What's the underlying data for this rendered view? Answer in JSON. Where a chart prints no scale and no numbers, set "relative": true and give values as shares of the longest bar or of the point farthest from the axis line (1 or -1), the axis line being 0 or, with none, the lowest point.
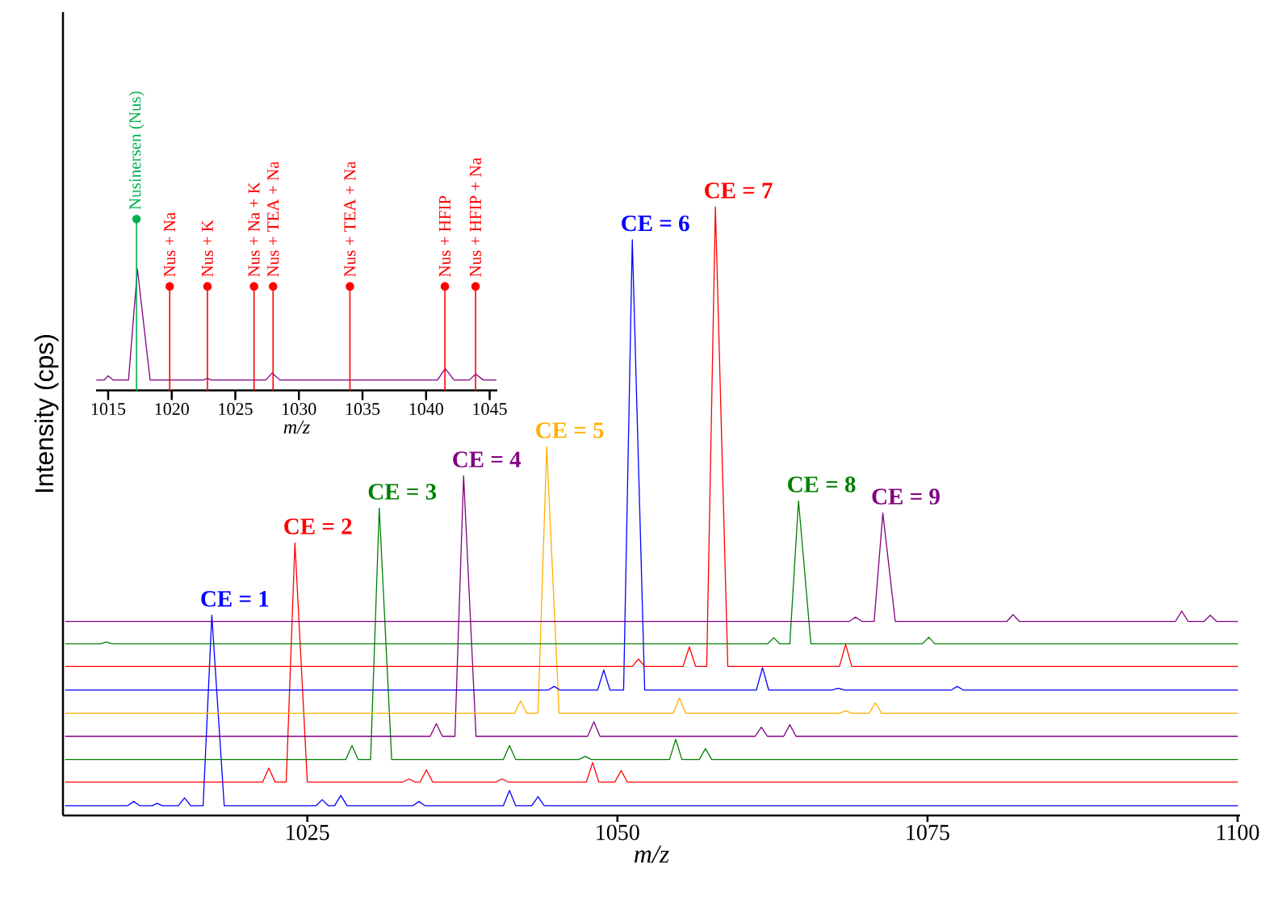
{
  "chart_data": [
    {
      "type": "line",
      "xlabel": "m/z",
      "ylabel": "Intensity (cps)",
      "relative": true,
      "xlim": [
        1005.3,
        1100.2
      ],
      "xticks": [
        1025,
        1050,
        1075,
        1100
      ],
      "series": [
        {
          "color": "#0000ff",
          "x": [
            1005.5,
            1010.5,
            1011.0,
            1011.5,
            1012.5,
            1012.9,
            1013.3,
            1014.6,
            1015.1,
            1015.6,
            1016.6,
            1017.3,
            1018.3,
            1025.7,
            1026.2,
            1026.7,
            1027.2,
            1027.7,
            1028.2,
            1033.5,
            1034.0,
            1034.5,
            1040.8,
            1041.3,
            1041.8,
            1043.1,
            1043.6,
            1044.1,
            1100
          ],
          "values": [
            0.016,
            0.016,
            0.023,
            0.016,
            0.016,
            0.02,
            0.016,
            0.016,
            0.029,
            0.016,
            0.016,
            0.329,
            0.016,
            0.016,
            0.026,
            0.016,
            0.016,
            0.033,
            0.016,
            0.016,
            0.023,
            0.016,
            0.016,
            0.041,
            0.016,
            0.016,
            0.031,
            0.016,
            0.016
          ]
        },
        {
          "color": "#ff0000",
          "x": [
            1005.5,
            1021.4,
            1021.9,
            1022.4,
            1023.3,
            1024.0,
            1025.0,
            1032.7,
            1033.2,
            1033.7,
            1034.1,
            1034.6,
            1035.1,
            1040.2,
            1040.7,
            1041.2,
            1047.5,
            1048.0,
            1048.5,
            1049.8,
            1050.3,
            1050.8,
            1100
          ],
          "values": [
            0.055,
            0.055,
            0.078,
            0.055,
            0.055,
            0.448,
            0.055,
            0.055,
            0.06,
            0.055,
            0.055,
            0.075,
            0.055,
            0.055,
            0.06,
            0.055,
            0.055,
            0.087,
            0.055,
            0.055,
            0.074,
            0.055,
            0.055
          ]
        },
        {
          "color": "#008000",
          "x": [
            1005.5,
            1028.1,
            1028.6,
            1029.1,
            1030.1,
            1030.8,
            1031.8,
            1040.8,
            1041.3,
            1041.8,
            1046.9,
            1047.4,
            1047.9,
            1054.2,
            1054.7,
            1055.2,
            1056.6,
            1057.1,
            1057.6,
            1100
          ],
          "values": [
            0.092,
            0.092,
            0.115,
            0.092,
            0.092,
            0.505,
            0.092,
            0.092,
            0.115,
            0.092,
            0.092,
            0.097,
            0.092,
            0.092,
            0.125,
            0.092,
            0.092,
            0.11,
            0.092,
            0.092
          ]
        },
        {
          "color": "#800080",
          "x": [
            1005.5,
            1034.9,
            1035.4,
            1035.9,
            1036.9,
            1037.6,
            1038.6,
            1047.6,
            1048.1,
            1048.6,
            1061.1,
            1061.6,
            1062.1,
            1063.4,
            1063.9,
            1064.4,
            1100
          ],
          "values": [
            0.13,
            0.13,
            0.151,
            0.13,
            0.13,
            0.558,
            0.13,
            0.13,
            0.154,
            0.13,
            0.13,
            0.145,
            0.13,
            0.13,
            0.149,
            0.13,
            0.13
          ]
        },
        {
          "color": "#ffb000",
          "x": [
            1005.5,
            1041.7,
            1042.2,
            1042.7,
            1043.6,
            1044.3,
            1045.3,
            1054.5,
            1055.0,
            1055.5,
            1067.9,
            1068.4,
            1068.9,
            1070.3,
            1070.8,
            1071.3,
            1100
          ],
          "values": [
            0.168,
            0.168,
            0.188,
            0.168,
            0.168,
            0.606,
            0.168,
            0.168,
            0.193,
            0.168,
            0.168,
            0.172,
            0.168,
            0.168,
            0.185,
            0.168,
            0.168
          ]
        },
        {
          "color": "#0000ff",
          "x": [
            1005.5,
            1044.4,
            1044.9,
            1045.4,
            1048.4,
            1048.9,
            1049.4,
            1050.5,
            1051.2,
            1052.2,
            1061.2,
            1061.7,
            1062.2,
            1067.3,
            1067.8,
            1068.3,
            1076.9,
            1077.4,
            1077.9,
            1100
          ],
          "values": [
            0.206,
            0.206,
            0.212,
            0.206,
            0.206,
            0.239,
            0.206,
            0.206,
            0.946,
            0.206,
            0.206,
            0.243,
            0.206,
            0.206,
            0.209,
            0.206,
            0.206,
            0.212,
            0.206,
            0.206
          ]
        },
        {
          "color": "#ff0000",
          "x": [
            1005.5,
            1051.2,
            1051.7,
            1052.2,
            1055.3,
            1055.8,
            1056.3,
            1057.2,
            1057.9,
            1058.9,
            1067.9,
            1068.4,
            1068.9,
            1100
          ],
          "values": [
            0.245,
            0.245,
            0.257,
            0.245,
            0.245,
            0.277,
            0.245,
            0.245,
            1.0,
            0.245,
            0.245,
            0.281,
            0.245,
            0.245
          ]
        },
        {
          "color": "#008000",
          "x": [
            1005.5,
            1008.3,
            1008.8,
            1009.3,
            1062.1,
            1062.6,
            1063.1,
            1063.9,
            1064.6,
            1065.6,
            1074.6,
            1075.1,
            1075.6,
            1100
          ],
          "values": [
            0.282,
            0.282,
            0.285,
            0.282,
            0.282,
            0.292,
            0.282,
            0.282,
            0.517,
            0.282,
            0.282,
            0.293,
            0.282,
            0.282
          ]
        },
        {
          "color": "#800080",
          "x": [
            1005.5,
            1068.7,
            1069.2,
            1069.7,
            1070.7,
            1071.4,
            1072.4,
            1081.4,
            1081.9,
            1082.4,
            1095.0,
            1095.5,
            1096.0,
            1097.3,
            1097.8,
            1098.3,
            1100
          ],
          "values": [
            0.319,
            0.319,
            0.326,
            0.319,
            0.319,
            0.497,
            0.319,
            0.319,
            0.33,
            0.319,
            0.319,
            0.336,
            0.319,
            0.319,
            0.329,
            0.319,
            0.319
          ]
        }
      ],
      "annotations": [
        {
          "text": "CE = 1",
          "x": 1017.3,
          "y": 0.329
        },
        {
          "text": "CE = 2",
          "x": 1024.0,
          "y": 0.448
        },
        {
          "text": "CE = 3",
          "x": 1030.8,
          "y": 0.505
        },
        {
          "text": "CE = 4",
          "x": 1037.6,
          "y": 0.558
        },
        {
          "text": "CE = 5",
          "x": 1044.3,
          "y": 0.606
        },
        {
          "text": "CE = 6",
          "x": 1051.2,
          "y": 0.946
        },
        {
          "text": "CE = 7",
          "x": 1057.9,
          "y": 1.0
        },
        {
          "text": "CE = 8",
          "x": 1064.6,
          "y": 0.517
        },
        {
          "text": "CE = 9",
          "x": 1071.4,
          "y": 0.497
        }
      ]
    },
    {
      "type": "line",
      "xlabel": "m/z",
      "relative": true,
      "xlim": [
        1014.05,
        1045.6
      ],
      "xticks": [
        1015,
        1020,
        1025,
        1030,
        1035,
        1040,
        1045
      ],
      "series": [
        {
          "type": "line",
          "color": "#800080",
          "x": [
            1014.1,
            1014.7,
            1015.0,
            1015.4,
            1016.6,
            1017.3,
            1018.3,
            1022.5,
            1022.8,
            1023.1,
            1027.4,
            1027.9,
            1028.5,
            1040.9,
            1041.5,
            1042.2,
            1043.4,
            1043.9,
            1044.5,
            1045.5
          ],
          "values": [
            0.061,
            0.061,
            0.085,
            0.061,
            0.061,
            0.708,
            0.061,
            0.061,
            0.07,
            0.061,
            0.061,
            0.102,
            0.061,
            0.061,
            0.128,
            0.061,
            0.061,
            0.096,
            0.061,
            0.061
          ]
        },
        {
          "type": "lollipop",
          "color": "#00b050",
          "x": [
            1017.23
          ],
          "values": [
            1.0
          ]
        },
        {
          "type": "lollipop",
          "color": "#ff0000",
          "x": [
            1019.84,
            1022.81,
            1026.47,
            1027.97,
            1034.01,
            1041.48,
            1043.89
          ],
          "values": [
            0.607,
            0.607,
            0.607,
            0.607,
            0.607,
            0.607,
            0.607
          ]
        }
      ],
      "annotations": [
        {
          "text": "Nusinersen (Nus)",
          "x": 1017.23,
          "y": 1.0
        },
        {
          "text": "Nus + Na",
          "x": 1019.84,
          "y": 0.607
        },
        {
          "text": "Nus + K",
          "x": 1022.81,
          "y": 0.607
        },
        {
          "text": "Nus + Na + K",
          "x": 1026.47,
          "y": 0.607
        },
        {
          "text": "Nus + TEA + Na",
          "x": 1027.97,
          "y": 0.607
        },
        {
          "text": "Nus + TEA + Na",
          "x": 1034.01,
          "y": 0.607
        },
        {
          "text": "Nus + HFIP",
          "x": 1041.48,
          "y": 0.607
        },
        {
          "text": "Nus + HFIP + Na",
          "x": 1043.89,
          "y": 0.607
        }
      ]
    }
  ]
}
